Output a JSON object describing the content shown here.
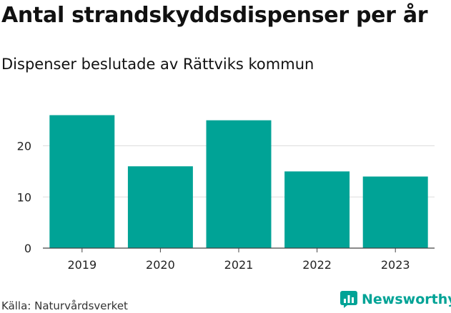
{
  "header": {
    "title": "Antal strandskyddsdispenser per år",
    "subtitle": "Dispenser beslutade av Rättviks kommun"
  },
  "footer": {
    "source": "Källa: Naturvårdsverket",
    "brand": "Newsworthy",
    "brand_icon": "bar-chart-logo-icon"
  },
  "colors": {
    "bar": "#00a396",
    "grid": "#dddddd",
    "brand": "#00a396"
  },
  "chart_data": {
    "type": "bar",
    "title": "Antal strandskyddsdispenser per år",
    "subtitle": "Dispenser beslutade av Rättviks kommun",
    "categories": [
      "2019",
      "2020",
      "2021",
      "2022",
      "2023"
    ],
    "values": [
      26,
      16,
      25,
      15,
      14
    ],
    "yticks": [
      0,
      10,
      20
    ],
    "ylim": [
      0,
      29
    ],
    "grid": true,
    "xlabel": "",
    "ylabel": ""
  }
}
